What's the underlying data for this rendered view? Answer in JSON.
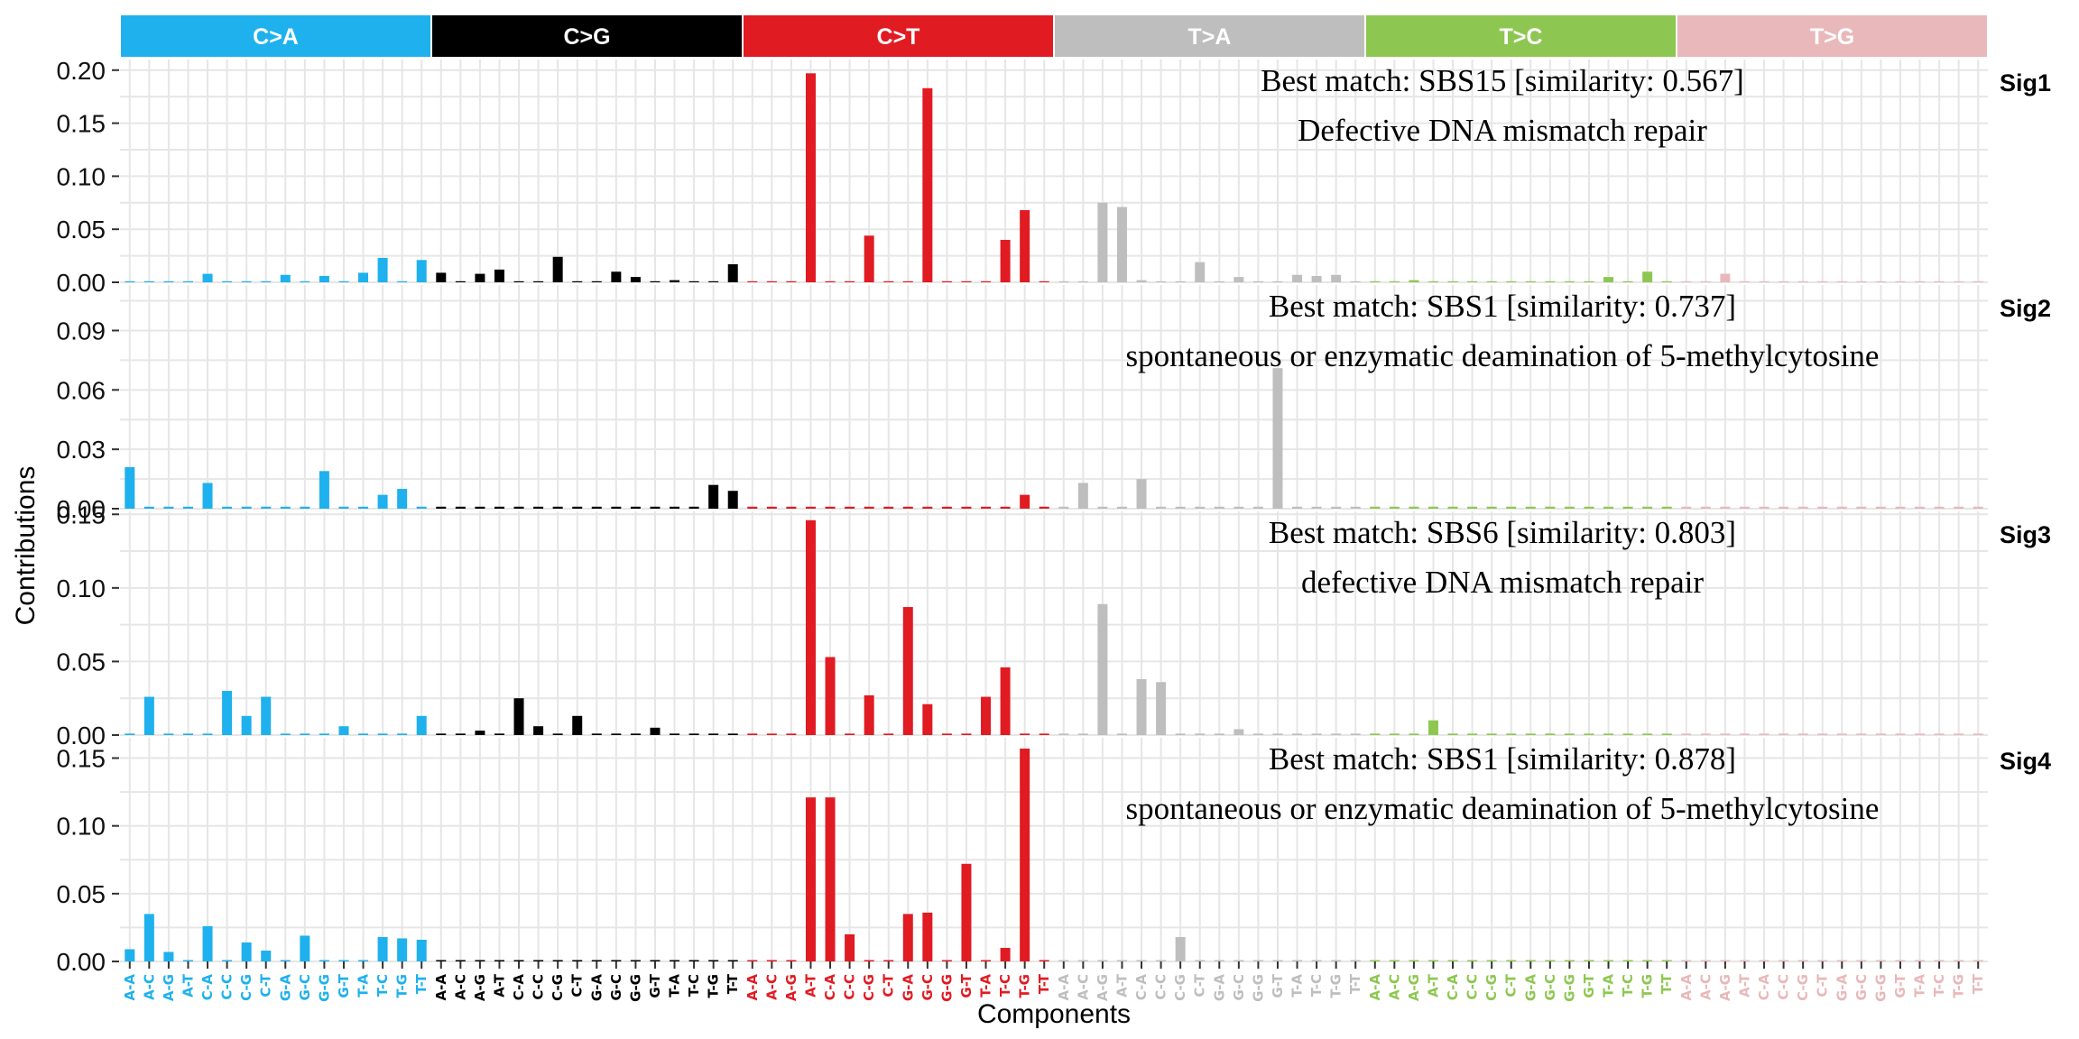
{
  "chart_data": {
    "type": "bar",
    "xlabel": "Components",
    "ylabel": "Contributions",
    "groups": [
      {
        "name": "C>A",
        "color": "#1EB1ED"
      },
      {
        "name": "C>G",
        "color": "#000000"
      },
      {
        "name": "C>T",
        "color": "#E01B22"
      },
      {
        "name": "T>A",
        "color": "#BEBEBE"
      },
      {
        "name": "T>C",
        "color": "#8DC751"
      },
      {
        "name": "T>G",
        "color": "#E8B8BA"
      }
    ],
    "categories": [
      "A-A",
      "A-C",
      "A-G",
      "A-T",
      "C-A",
      "C-C",
      "C-G",
      "C-T",
      "G-A",
      "G-C",
      "G-G",
      "G-T",
      "T-A",
      "T-C",
      "T-G",
      "T-T",
      "A-A",
      "A-C",
      "A-G",
      "A-T",
      "C-A",
      "C-C",
      "C-G",
      "C-T",
      "G-A",
      "G-C",
      "G-G",
      "G-T",
      "T-A",
      "T-C",
      "T-G",
      "T-T",
      "A-A",
      "A-C",
      "A-G",
      "A-T",
      "C-A",
      "C-C",
      "C-G",
      "C-T",
      "G-A",
      "G-C",
      "G-G",
      "G-T",
      "T-A",
      "T-C",
      "T-G",
      "T-T",
      "A-A",
      "A-C",
      "A-G",
      "A-T",
      "C-A",
      "C-C",
      "C-G",
      "C-T",
      "G-A",
      "G-C",
      "G-G",
      "G-T",
      "T-A",
      "T-C",
      "T-G",
      "T-T",
      "A-A",
      "A-C",
      "A-G",
      "A-T",
      "C-A",
      "C-C",
      "C-G",
      "C-T",
      "G-A",
      "G-C",
      "G-G",
      "G-T",
      "T-A",
      "T-C",
      "T-G",
      "T-T",
      "A-A",
      "A-C",
      "A-G",
      "A-T",
      "C-A",
      "C-C",
      "C-G",
      "C-T",
      "G-A",
      "G-C",
      "G-G",
      "G-T",
      "T-A",
      "T-C",
      "T-G",
      "T-T"
    ],
    "panels": [
      {
        "label": "Sig1",
        "ylim": [
          0,
          0.21
        ],
        "yticks": [
          {
            "v": 0,
            "t": "0.00"
          },
          {
            "v": 0.05,
            "t": "0.05"
          },
          {
            "v": 0.1,
            "t": "0.10"
          },
          {
            "v": 0.15,
            "t": "0.15"
          },
          {
            "v": 0.2,
            "t": "0.20"
          }
        ],
        "annotation": [
          "Best match: SBS15 [similarity: 0.567]",
          "Defective DNA mismatch repair"
        ],
        "values": [
          0.001,
          0.001,
          0.001,
          0.001,
          0.008,
          0.001,
          0.001,
          0.001,
          0.007,
          0.001,
          0.006,
          0.001,
          0.009,
          0.023,
          0.001,
          0.021,
          0.009,
          0.001,
          0.008,
          0.012,
          0.001,
          0.001,
          0.024,
          0.001,
          0.001,
          0.01,
          0.005,
          0.001,
          0.002,
          0.001,
          0.001,
          0.017,
          0.001,
          0.001,
          0.001,
          0.197,
          0.001,
          0.001,
          0.044,
          0.001,
          0.001,
          0.183,
          0.001,
          0.001,
          0.001,
          0.04,
          0.068,
          0.001,
          0.001,
          0.001,
          0.075,
          0.071,
          0.002,
          0.001,
          0.001,
          0.019,
          0.001,
          0.005,
          0.001,
          0.001,
          0.007,
          0.006,
          0.007,
          0.001,
          0.001,
          0.001,
          0.002,
          0.001,
          0.001,
          0.001,
          0.001,
          0.001,
          0.001,
          0.001,
          0.001,
          0.001,
          0.005,
          0.001,
          0.01,
          0.001,
          0.001,
          0.001,
          0.008,
          0.001,
          0.001,
          0.001,
          0.001,
          0.001,
          0.001,
          0.001,
          0.001,
          0.001,
          0.001,
          0.001,
          0.001,
          0.001
        ]
      },
      {
        "label": "Sig2",
        "ylim": [
          0,
          0.113
        ],
        "yticks": [
          {
            "v": 0,
            "t": "0.00"
          },
          {
            "v": 0.03,
            "t": "0.03"
          },
          {
            "v": 0.06,
            "t": "0.06"
          },
          {
            "v": 0.09,
            "t": "0.09"
          }
        ],
        "annotation": [
          "Best match: SBS1 [similarity: 0.737]",
          "spontaneous or enzymatic deamination of 5-methylcytosine"
        ],
        "values": [
          0.021,
          0.001,
          0.001,
          0.001,
          0.013,
          0.001,
          0.001,
          0.001,
          0.001,
          0.001,
          0.019,
          0.001,
          0.001,
          0.007,
          0.01,
          0.001,
          0.001,
          0.001,
          0.001,
          0.001,
          0.001,
          0.001,
          0.001,
          0.001,
          0.001,
          0.001,
          0.001,
          0.001,
          0.001,
          0.001,
          0.012,
          0.009,
          0.001,
          0.001,
          0.001,
          0.001,
          0.001,
          0.001,
          0.001,
          0.001,
          0.001,
          0.001,
          0.001,
          0.001,
          0.001,
          0.001,
          0.007,
          0.001,
          0.001,
          0.013,
          0.001,
          0.001,
          0.015,
          0.001,
          0.001,
          0.001,
          0.001,
          0.001,
          0.001,
          0.071,
          0.001,
          0.001,
          0.001,
          0.001,
          0.001,
          0.001,
          0.001,
          0.001,
          0.001,
          0.001,
          0.001,
          0.001,
          0.001,
          0.001,
          0.001,
          0.001,
          0.001,
          0.001,
          0.001,
          0.001,
          0.001,
          0.001,
          0.001,
          0.001,
          0.001,
          0.001,
          0.001,
          0.001,
          0.001,
          0.001,
          0.001,
          0.001,
          0.001,
          0.001,
          0.001,
          0.001
        ]
      },
      {
        "label": "Sig3",
        "ylim": [
          0,
          0.152
        ],
        "yticks": [
          {
            "v": 0,
            "t": "0.00"
          },
          {
            "v": 0.05,
            "t": "0.05"
          },
          {
            "v": 0.1,
            "t": "0.10"
          },
          {
            "v": 0.15,
            "t": "0.15"
          }
        ],
        "annotation": [
          "Best match: SBS6 [similarity: 0.803]",
          "defective DNA mismatch repair"
        ],
        "values": [
          0.001,
          0.026,
          0.001,
          0.001,
          0.001,
          0.03,
          0.013,
          0.026,
          0.001,
          0.001,
          0.001,
          0.006,
          0.001,
          0.001,
          0.001,
          0.013,
          0.001,
          0.001,
          0.003,
          0.001,
          0.025,
          0.006,
          0.001,
          0.013,
          0.001,
          0.001,
          0.001,
          0.005,
          0.001,
          0.001,
          0.001,
          0.001,
          0.001,
          0.001,
          0.001,
          0.146,
          0.053,
          0.001,
          0.027,
          0.001,
          0.087,
          0.021,
          0.001,
          0.001,
          0.026,
          0.046,
          0.001,
          0.001,
          0.001,
          0.001,
          0.089,
          0.001,
          0.038,
          0.036,
          0.001,
          0.001,
          0.001,
          0.004,
          0.001,
          0.001,
          0.001,
          0.001,
          0.001,
          0.001,
          0.001,
          0.001,
          0.001,
          0.01,
          0.001,
          0.001,
          0.001,
          0.001,
          0.001,
          0.001,
          0.001,
          0.001,
          0.001,
          0.001,
          0.001,
          0.001,
          0.001,
          0.001,
          0.001,
          0.001,
          0.001,
          0.001,
          0.001,
          0.001,
          0.001,
          0.001,
          0.001,
          0.001,
          0.001,
          0.001,
          0.001,
          0.001
        ]
      },
      {
        "label": "Sig4",
        "ylim": [
          0,
          0.165
        ],
        "yticks": [
          {
            "v": 0,
            "t": "0.00"
          },
          {
            "v": 0.05,
            "t": "0.05"
          },
          {
            "v": 0.1,
            "t": "0.10"
          },
          {
            "v": 0.15,
            "t": "0.15"
          }
        ],
        "annotation": [
          "Best match: SBS1 [similarity: 0.878]",
          "spontaneous or enzymatic deamination of 5-methylcytosine"
        ],
        "values": [
          0.009,
          0.035,
          0.007,
          0.001,
          0.026,
          0.001,
          0.014,
          0.008,
          0.001,
          0.019,
          0.001,
          0.001,
          0.001,
          0.018,
          0.017,
          0.016,
          0.001,
          0.001,
          0.001,
          0.001,
          0.001,
          0.001,
          0.001,
          0.001,
          0.001,
          0.001,
          0.001,
          0.001,
          0.001,
          0.001,
          0.001,
          0.001,
          0.001,
          0.001,
          0.001,
          0.121,
          0.121,
          0.02,
          0.001,
          0.001,
          0.035,
          0.036,
          0.001,
          0.072,
          0.001,
          0.01,
          0.157,
          0.001,
          0.001,
          0.001,
          0.001,
          0.001,
          0.001,
          0.001,
          0.018,
          0.001,
          0.001,
          0.001,
          0.001,
          0.001,
          0.001,
          0.001,
          0.001,
          0.001,
          0.001,
          0.001,
          0.001,
          0.001,
          0.001,
          0.001,
          0.001,
          0.001,
          0.001,
          0.001,
          0.001,
          0.001,
          0.001,
          0.001,
          0.001,
          0.001,
          0.001,
          0.001,
          0.001,
          0.001,
          0.001,
          0.001,
          0.001,
          0.001,
          0.001,
          0.001,
          0.001,
          0.001,
          0.001,
          0.001,
          0.001,
          0.001
        ]
      }
    ]
  }
}
